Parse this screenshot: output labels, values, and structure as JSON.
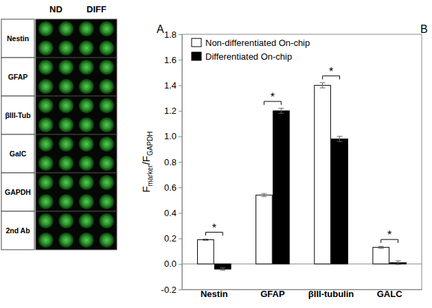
{
  "panel_a": {
    "label": "A",
    "columns": [
      "ND",
      "DIFF"
    ],
    "rows": [
      "Nestin",
      "GFAP",
      "βIII-Tub",
      "GalC",
      "GAPDH",
      "2nd Ab"
    ]
  },
  "chart_data": {
    "type": "bar",
    "panel_label": "B",
    "ylabel": [
      "F",
      "marker",
      "/F",
      "GAPDH"
    ],
    "categories": [
      "Nestin",
      "GFAP",
      "βIII-tubulin",
      "GALC"
    ],
    "series": [
      {
        "name": "Non-differentiated On-chip",
        "color": "#ffffff",
        "values": [
          0.19,
          0.54,
          1.4,
          0.13
        ],
        "errors": [
          0.005,
          0.012,
          0.02,
          0.008
        ]
      },
      {
        "name": "Differentiated On-chip",
        "color": "#000000",
        "values": [
          -0.04,
          1.2,
          0.98,
          0.01
        ],
        "errors": [
          0.01,
          0.02,
          0.02,
          0.015
        ]
      }
    ],
    "significance": [
      "*",
      "*",
      "*",
      "*"
    ],
    "ylim": [
      -0.2,
      1.8
    ],
    "yticks": [
      -0.2,
      {
        "value": 0,
        "label": "0.0"
      },
      0.2,
      0.4,
      0.6,
      0.8,
      {
        "value": 1,
        "label": "1.0"
      },
      1.2,
      1.4,
      1.6,
      1.8
    ],
    "legend": "upper left"
  }
}
